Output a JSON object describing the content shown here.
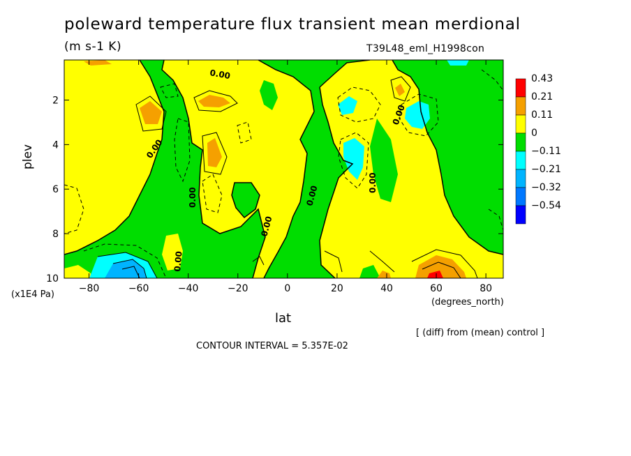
{
  "header": {
    "title": "poleward temperature flux transient mean merdional",
    "units": "(m s-1 K)",
    "run_id": "T39L48_eml_H1998con"
  },
  "annotations": {
    "vertical_scale": "(x1E4 Pa)",
    "x_units": "(degrees_north)",
    "diff_note": "[ (diff) from (mean) control ]",
    "contour_interval": "CONTOUR INTERVAL = 5.357E-02"
  },
  "chart_data": {
    "type": "heatmap",
    "title": "poleward temperature flux transient mean merdional",
    "xlabel": "lat",
    "ylabel": "plev",
    "xlim": [
      -90,
      87
    ],
    "ylim": [
      0.2,
      10
    ],
    "y_reversed": true,
    "x_ticks": [
      -80,
      -60,
      -40,
      -20,
      0,
      20,
      40,
      60,
      80
    ],
    "y_ticks": [
      2,
      4,
      6,
      8,
      10
    ],
    "colorbar": {
      "levels": [
        "0.43",
        "0.21",
        "0.11",
        "0",
        "-0.11",
        "-0.21",
        "-0.32",
        "-0.54"
      ],
      "colors": [
        "#ff0000",
        "#f5a000",
        "#ffff00",
        "#00dd00",
        "#00ffff",
        "#00b4ff",
        "#0078ff",
        "#0000ff"
      ]
    },
    "contour_labels": [
      "0.00",
      "0.00",
      "0.00",
      "0.00",
      "0.00",
      "0.00",
      "0.00",
      "0.00",
      "0.00"
    ]
  },
  "colors": {
    "positive_strong": "#ff0000",
    "positive_mid": "#f5a000",
    "positive_weak": "#ffff00",
    "negative_weak": "#00dd00",
    "negative_mid": "#00ffff",
    "negative_strong": "#00b4ff"
  }
}
